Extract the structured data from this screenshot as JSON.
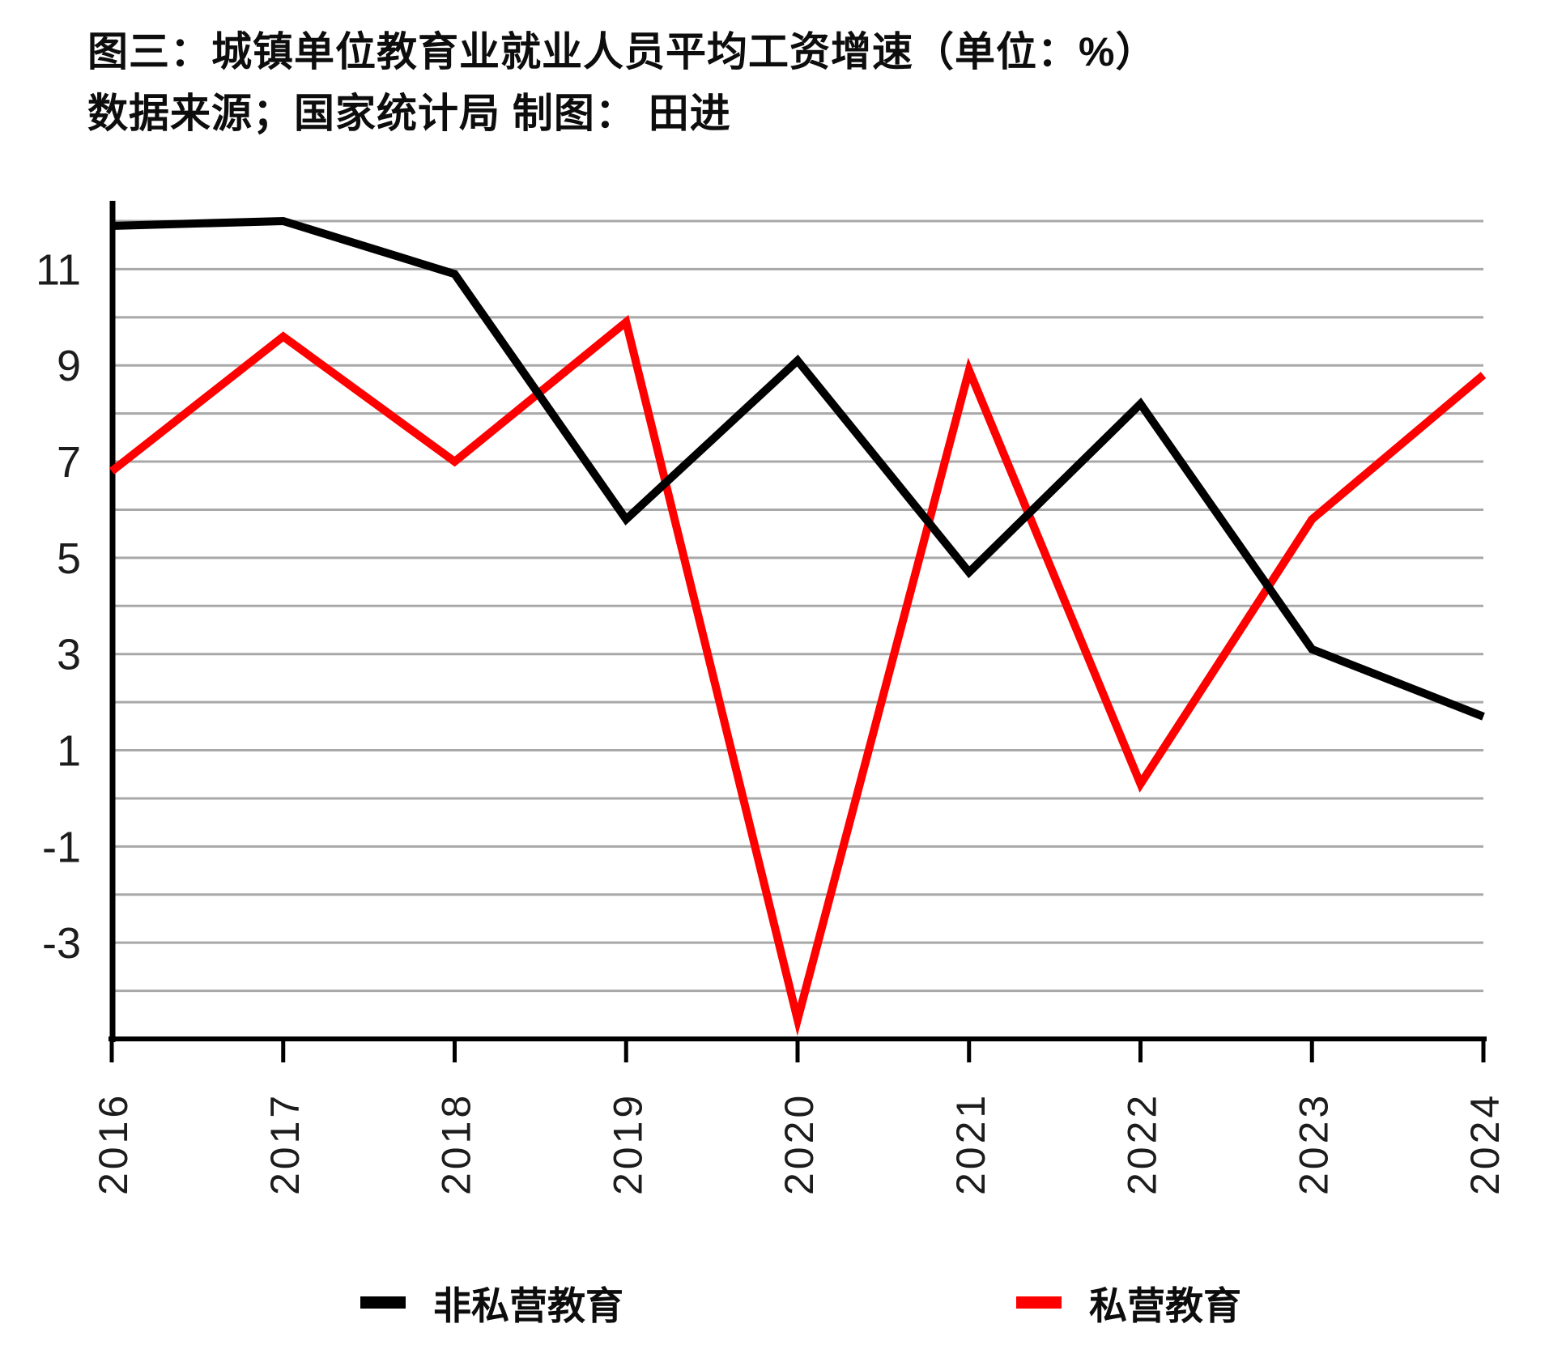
{
  "title": {
    "line1": "图三：城镇单位教育业就业人员平均工资增速（单位：%）",
    "line2": "数据来源；国家统计局 制图： 田进"
  },
  "chart_data": {
    "type": "line",
    "categories": [
      "2016",
      "2017",
      "2018",
      "2019",
      "2020",
      "2021",
      "2022",
      "2023",
      "2024"
    ],
    "series": [
      {
        "name": "非私营教育",
        "color": "#000000",
        "values": [
          11.9,
          12.0,
          10.9,
          5.8,
          9.1,
          4.7,
          8.2,
          3.1,
          1.7
        ]
      },
      {
        "name": "私营教育",
        "color": "#ff0000",
        "values": [
          6.8,
          9.6,
          7.0,
          9.9,
          -4.6,
          8.9,
          0.3,
          5.8,
          8.8
        ]
      }
    ],
    "ylim": [
      -5,
      12
    ],
    "ytick_label_values": [
      11,
      9,
      7,
      5,
      3,
      1,
      -1,
      -3
    ],
    "grid": "horizontal gridlines every 1 unit, gray",
    "legend_position": "bottom",
    "title": "图三：城镇单位教育业就业人员平均工资增速（单位：%）",
    "xlabel": "",
    "ylabel": ""
  },
  "legend": {
    "items": [
      {
        "label": "非私营教育",
        "color": "#000000"
      },
      {
        "label": "私营教育",
        "color": "#ff0000"
      }
    ]
  },
  "style": {
    "grid_color": "#a8a8a8",
    "axis_color": "#000000",
    "tick_label_color": "#1c1c1c"
  }
}
